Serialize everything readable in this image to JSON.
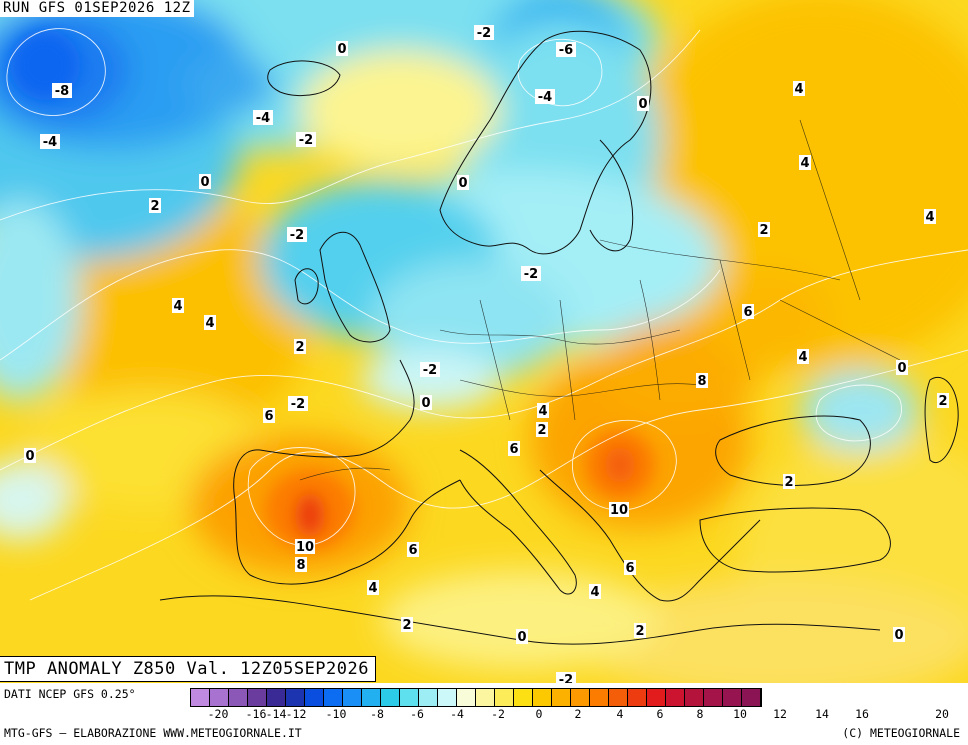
{
  "header": {
    "run_title": "RUN GFS 01SEP2026 12Z"
  },
  "map_title": "TMP ANOMALY Z850 Val. 12Z05SEP2026",
  "footer": {
    "data_source": "DATI NCEP GFS 0.25°",
    "credit_left": "MTG-GFS – ELABORAZIONE WWW.METEOGIORNALE.IT",
    "credit_right": "(C) METEOGIORNALE"
  },
  "legend": {
    "colors": [
      "#c08ae0",
      "#a872d0",
      "#8c58b8",
      "#6a3c9e",
      "#3a2a96",
      "#1c34b0",
      "#0a4ee0",
      "#0c6cf2",
      "#1a90f6",
      "#22b0f0",
      "#2ccce8",
      "#5ee0ee",
      "#9ceef4",
      "#ccf8fa",
      "#f8fcd8",
      "#fcf6a0",
      "#fcec5a",
      "#fce014",
      "#fcc800",
      "#fcb000",
      "#fc9800",
      "#fc7c00",
      "#f45e08",
      "#ec3c10",
      "#e21c1c",
      "#cc1430",
      "#b4143c",
      "#a41448",
      "#961450",
      "#8a1454"
    ],
    "ticks": [
      "-20",
      "-16",
      "-14",
      "-12",
      "-10",
      "-8",
      "-6",
      "-4",
      "-2",
      "0",
      "2",
      "4",
      "6",
      "8",
      "10",
      "12",
      "14",
      "16",
      "20"
    ]
  },
  "map": {
    "contour_labels": [
      "0",
      "-2",
      "-6",
      "-8",
      "-4",
      "4",
      "-4",
      "-2",
      "-4",
      "0",
      "4",
      "0",
      "0",
      "2",
      "4",
      "2",
      "-2",
      "-2",
      "4",
      "4",
      "6",
      "2",
      "4",
      "-2",
      "8",
      "0",
      "0",
      "-2",
      "2",
      "6",
      "4",
      "2",
      "0",
      "6",
      "2",
      "10",
      "10",
      "8",
      "6",
      "6",
      "4",
      "4",
      "2",
      "2",
      "0",
      "-2",
      "0"
    ]
  }
}
